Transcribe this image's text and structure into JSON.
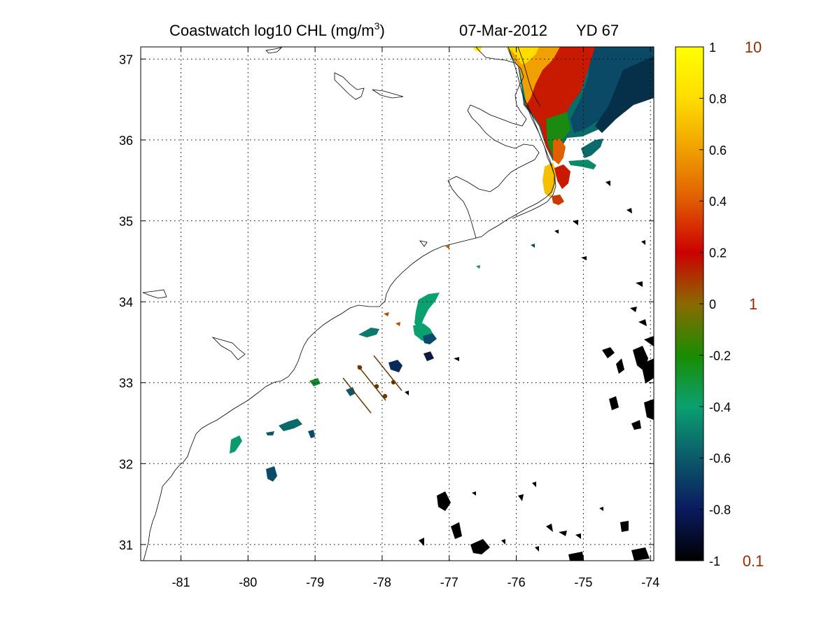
{
  "title": {
    "main": "Coastwatch  log10  CHL (mg/m",
    "superscript": "3",
    "close": ")",
    "date": "07-Mar-2012",
    "yearday": "YD 67"
  },
  "map": {
    "lon_range": [
      -81.6,
      -73.95
    ],
    "lat_range": [
      30.8,
      37.15
    ],
    "lon_ticks": [
      -81,
      -80,
      -79,
      -78,
      -77,
      -76,
      -75,
      -74
    ],
    "lat_ticks": [
      31,
      32,
      33,
      34,
      35,
      36,
      37
    ],
    "grid": true
  },
  "colorbar": {
    "range": [
      -1,
      1
    ],
    "ticks": [
      1,
      0.8,
      0.6,
      0.4,
      0.2,
      0,
      -0.2,
      -0.4,
      -0.6,
      -0.8,
      -1
    ],
    "tick_labels": [
      "1",
      "0.8",
      "0.6",
      "0.4",
      "0.2",
      "0",
      "-0.2",
      "-0.4",
      "-0.6",
      "-0.8",
      "-1"
    ],
    "colors": [
      "#000000",
      "#0a1a60",
      "#0b5a6a",
      "#0aa070",
      "#1a8c00",
      "#8a6a00",
      "#cc0000",
      "#e05a00",
      "#f0a000",
      "#ffdd00",
      "#ffff00"
    ],
    "concentration_labels": [
      {
        "value": 1,
        "label": "10"
      },
      {
        "value": 0,
        "label": "1"
      },
      {
        "value": -1,
        "label": "0.1"
      }
    ]
  },
  "chart_data": {
    "type": "heatmap",
    "variable": "log10 CHL (mg/m^3)",
    "xlim": [
      -81.6,
      -73.95
    ],
    "ylim": [
      30.8,
      37.15
    ],
    "vlim": [
      -1,
      1
    ],
    "regions": [
      {
        "lon": -75.0,
        "lat": 36.8,
        "value": -0.45
      },
      {
        "lon": -75.7,
        "lat": 36.7,
        "value": 0.25
      },
      {
        "lon": -76.0,
        "lat": 36.95,
        "value": 0.85
      },
      {
        "lon": -75.4,
        "lat": 35.4,
        "value": 0.9
      },
      {
        "lon": -77.4,
        "lat": 33.8,
        "value": -0.35
      },
      {
        "lon": -78.2,
        "lat": 33.6,
        "value": -0.45
      },
      {
        "lon": -79.4,
        "lat": 32.4,
        "value": -0.5
      },
      {
        "lon": -80.1,
        "lat": 32.2,
        "value": -0.3
      },
      {
        "lon": -79.6,
        "lat": 31.8,
        "value": -0.55
      },
      {
        "lon": -77.8,
        "lat": 33.2,
        "value": -0.75
      },
      {
        "lon": -74.2,
        "lat": 32.7,
        "value": -1.0
      },
      {
        "lon": -74.8,
        "lat": 33.2,
        "value": -1.0
      },
      {
        "lon": -76.8,
        "lat": 31.2,
        "value": -1.0
      },
      {
        "lon": -76.1,
        "lat": 30.9,
        "value": -1.0
      },
      {
        "lon": -75.1,
        "lat": 31.1,
        "value": -1.0
      }
    ]
  }
}
